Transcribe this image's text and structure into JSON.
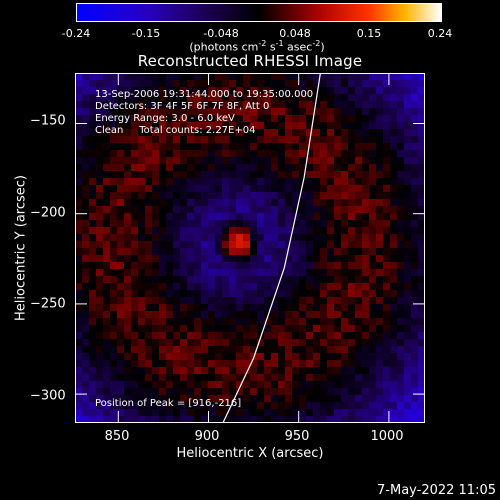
{
  "colorbar": {
    "ticks": [
      "-0.24",
      "-0.15",
      "-0.048",
      "0.048",
      "0.15",
      "0.24"
    ],
    "tick_values": [
      -0.24,
      -0.15,
      -0.048,
      0.048,
      0.15,
      0.24
    ],
    "range": [
      -0.24,
      0.24
    ],
    "units_text": "(photons cm",
    "units_exp1": "-2",
    "units_mid1": " s",
    "units_exp2": "-1",
    "units_mid2": " asec",
    "units_exp3": "-2",
    "units_end": ")"
  },
  "chart_data": {
    "type": "heatmap",
    "title": "Reconstructed RHESSI Image",
    "xlabel": "Heliocentric X (arcsec)",
    "ylabel": "Heliocentric Y (arcsec)",
    "xlim": [
      826,
      1020
    ],
    "ylim": [
      -316,
      -122
    ],
    "xticks": [
      850,
      900,
      950,
      1000
    ],
    "xtick_labels": [
      "850",
      "900",
      "950",
      "1000"
    ],
    "yticks": [
      -150,
      -200,
      -250,
      -300
    ],
    "ytick_labels": [
      "−150",
      "−200",
      "−250",
      "−300"
    ],
    "peak": [
      916,
      -216
    ],
    "info_lines": [
      "13-Sep-2006 19:31:44.000 to 19:35:00.000",
      "Detectors: 3F 4F 5F 6F 7F 8F, Att 0",
      "Energy Range: 3.0 - 6.0 keV",
      "Clean     Total counts: 2.27E+04"
    ],
    "peak_label": "Position of Peak = [916,-216]",
    "limb_points": [
      [
        908,
        -316
      ],
      [
        925,
        -280
      ],
      [
        942,
        -230
      ],
      [
        953,
        -180
      ],
      [
        962,
        -122
      ]
    ]
  },
  "footer": {
    "date": "7-May-2022 11:05"
  },
  "colors": {
    "limb": "#ffffff",
    "background": "#000000"
  }
}
